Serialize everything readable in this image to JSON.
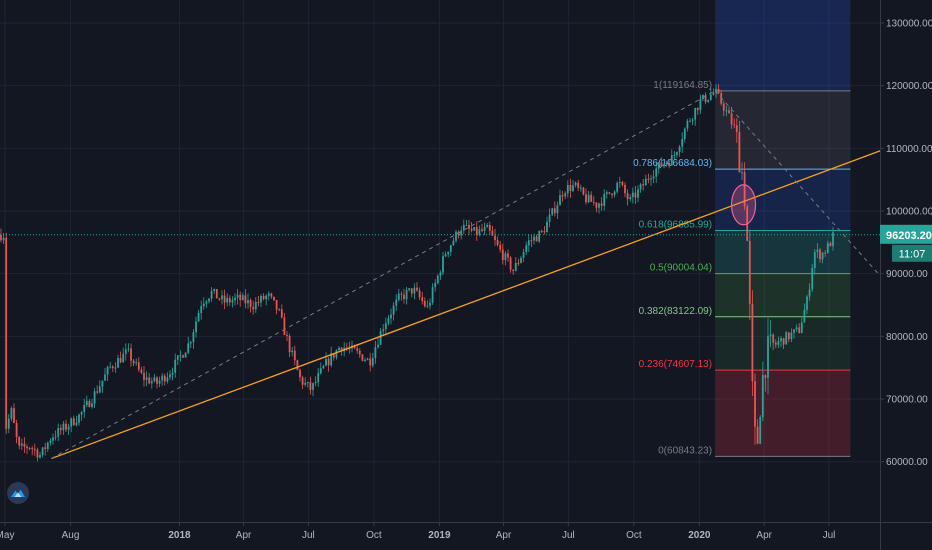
{
  "chart_data": {
    "type": "candlestick",
    "price_axis": {
      "ticks": [
        {
          "value": 130000,
          "label": "130000.00"
        },
        {
          "value": 120000,
          "label": "120000.00"
        },
        {
          "value": 110000,
          "label": "110000.00"
        },
        {
          "value": 100000,
          "label": "100000.00"
        },
        {
          "value": 90000,
          "label": "90000.00"
        },
        {
          "value": 80000,
          "label": "80000.00"
        },
        {
          "value": 70000,
          "label": "70000.00"
        },
        {
          "value": 60000,
          "label": "60000.00"
        }
      ],
      "range": [
        52000,
        136000
      ]
    },
    "time_axis": {
      "ticks": [
        {
          "label": "May",
          "date": "2017-05-01",
          "bold": false
        },
        {
          "label": "Aug",
          "date": "2017-08-01",
          "bold": false
        },
        {
          "label": "2018",
          "date": "2018-01-01",
          "bold": true
        },
        {
          "label": "Apr",
          "date": "2018-04-01",
          "bold": false
        },
        {
          "label": "Jul",
          "date": "2018-07-01",
          "bold": false
        },
        {
          "label": "Oct",
          "date": "2018-10-01",
          "bold": false
        },
        {
          "label": "2019",
          "date": "2019-01-01",
          "bold": true
        },
        {
          "label": "Apr",
          "date": "2019-04-01",
          "bold": false
        },
        {
          "label": "Jul",
          "date": "2019-07-01",
          "bold": false
        },
        {
          "label": "Oct",
          "date": "2019-10-01",
          "bold": false
        },
        {
          "label": "2020",
          "date": "2020-01-01",
          "bold": true
        },
        {
          "label": "Apr",
          "date": "2020-04-01",
          "bold": false
        },
        {
          "label": "Jul",
          "date": "2020-07-01",
          "bold": false
        }
      ]
    },
    "price_path": [
      [
        "2017-05-01",
        65000
      ],
      [
        "2017-05-10",
        68000
      ],
      [
        "2017-05-20",
        62000
      ],
      [
        "2017-06-05",
        62500
      ],
      [
        "2017-06-20",
        61000
      ],
      [
        "2017-07-05",
        64000
      ],
      [
        "2017-07-25",
        65500
      ],
      [
        "2017-08-15",
        67500
      ],
      [
        "2017-09-05",
        71000
      ],
      [
        "2017-09-25",
        75000
      ],
      [
        "2017-10-20",
        77500
      ],
      [
        "2017-11-10",
        73500
      ],
      [
        "2017-11-30",
        72500
      ],
      [
        "2017-12-20",
        74500
      ],
      [
        "2018-01-15",
        79000
      ],
      [
        "2018-02-01",
        85500
      ],
      [
        "2018-02-15",
        87000
      ],
      [
        "2018-03-05",
        85500
      ],
      [
        "2018-03-25",
        86000
      ],
      [
        "2018-04-15",
        85000
      ],
      [
        "2018-05-05",
        86500
      ],
      [
        "2018-05-20",
        84000
      ],
      [
        "2018-06-05",
        78000
      ],
      [
        "2018-06-20",
        73000
      ],
      [
        "2018-07-05",
        71500
      ],
      [
        "2018-07-25",
        75500
      ],
      [
        "2018-08-15",
        78500
      ],
      [
        "2018-09-05",
        77500
      ],
      [
        "2018-09-25",
        76000
      ],
      [
        "2018-10-15",
        82000
      ],
      [
        "2018-11-05",
        86000
      ],
      [
        "2018-11-25",
        87500
      ],
      [
        "2018-12-15",
        84500
      ],
      [
        "2019-01-10",
        93500
      ],
      [
        "2019-02-01",
        97500
      ],
      [
        "2019-02-20",
        96500
      ],
      [
        "2019-03-10",
        97000
      ],
      [
        "2019-03-25",
        94000
      ],
      [
        "2019-04-15",
        90500
      ],
      [
        "2019-05-05",
        95000
      ],
      [
        "2019-05-25",
        96500
      ],
      [
        "2019-06-10",
        100000
      ],
      [
        "2019-06-25",
        103500
      ],
      [
        "2019-07-10",
        104000
      ],
      [
        "2019-07-25",
        102000
      ],
      [
        "2019-08-10",
        101000
      ],
      [
        "2019-08-25",
        102500
      ],
      [
        "2019-09-10",
        104500
      ],
      [
        "2019-09-25",
        101500
      ],
      [
        "2019-10-10",
        103500
      ],
      [
        "2019-10-25",
        106000
      ],
      [
        "2019-11-10",
        107500
      ],
      [
        "2019-11-25",
        108500
      ],
      [
        "2019-12-15",
        114000
      ],
      [
        "2020-01-02",
        117500
      ],
      [
        "2020-01-10",
        118000
      ],
      [
        "2020-01-23",
        119000
      ],
      [
        "2020-02-05",
        116500
      ],
      [
        "2020-02-20",
        113000
      ],
      [
        "2020-03-01",
        106000
      ],
      [
        "2020-03-05",
        102000
      ],
      [
        "2020-03-10",
        91000
      ],
      [
        "2020-03-14",
        75000
      ],
      [
        "2020-03-18",
        64000
      ],
      [
        "2020-03-23",
        63500
      ],
      [
        "2020-03-28",
        72000
      ],
      [
        "2020-04-05",
        77500
      ],
      [
        "2020-04-20",
        79000
      ],
      [
        "2020-05-05",
        80000
      ],
      [
        "2020-05-20",
        81000
      ],
      [
        "2020-06-01",
        86000
      ],
      [
        "2020-06-10",
        93500
      ],
      [
        "2020-06-20",
        93000
      ],
      [
        "2020-07-01",
        94500
      ],
      [
        "2020-07-08",
        96203.2
      ]
    ],
    "fibonacci": {
      "start": "2020-01-23",
      "end": "2020-07-31",
      "levels": [
        {
          "ratio": "1",
          "price": 119164.85,
          "label": "1(119164.85)",
          "color": "#787b86",
          "fill": "rgba(120,123,134,0.18)"
        },
        {
          "ratio": "0.786",
          "price": 106684.03,
          "label": "0.786(106684.03)",
          "color": "#64b5f6",
          "fill": "rgba(41,98,255,0.18)"
        },
        {
          "ratio": "0.618",
          "price": 96885.99,
          "label": "0.618(96885.99)",
          "color": "#26a69a",
          "fill": "rgba(38,166,154,0.22)"
        },
        {
          "ratio": "0.5",
          "price": 90004.04,
          "label": "0.5(90004.04)",
          "color": "#4caf50",
          "fill": "rgba(76,175,80,0.18)"
        },
        {
          "ratio": "0.382",
          "price": 83122.09,
          "label": "0.382(83122.09)",
          "color": "#81c784",
          "fill": "rgba(76,175,80,0.12)"
        },
        {
          "ratio": "0.236",
          "price": 74607.13,
          "label": "0.236(74607.13)",
          "color": "#f23645",
          "fill": "rgba(242,54,69,0.22)"
        },
        {
          "ratio": "0",
          "price": 60843.23,
          "label": "0(60843.23)",
          "color": "#787b86",
          "fill": null
        }
      ],
      "extension_top": {
        "price": 136000,
        "color": "#2962ff",
        "fill": "rgba(41,98,255,0.22)"
      }
    },
    "trend_lines": [
      {
        "kind": "support",
        "color": "#f7a21b",
        "dashed": false,
        "from": [
          "2017-07-05",
          60500
        ],
        "to": [
          "2020-09-20",
          110000
        ]
      },
      {
        "kind": "dashed-rise",
        "color": "#787b86",
        "dashed": true,
        "from": [
          "2017-07-05",
          60500
        ],
        "to": [
          "2020-01-23",
          119164.85
        ]
      },
      {
        "kind": "dashed-fall",
        "color": "#787b86",
        "dashed": true,
        "from": [
          "2020-01-23",
          119164.85
        ],
        "to": [
          "2020-09-20",
          88500
        ]
      }
    ],
    "highlight": {
      "date": "2020-03-03",
      "price": 101000,
      "color": "#f06292"
    },
    "current_price": {
      "value": 96203.2,
      "label": "96203.20",
      "countdown": "11:07",
      "color": "#26a69a"
    },
    "up_color": "#26a69a",
    "down_color": "#ef5350"
  }
}
